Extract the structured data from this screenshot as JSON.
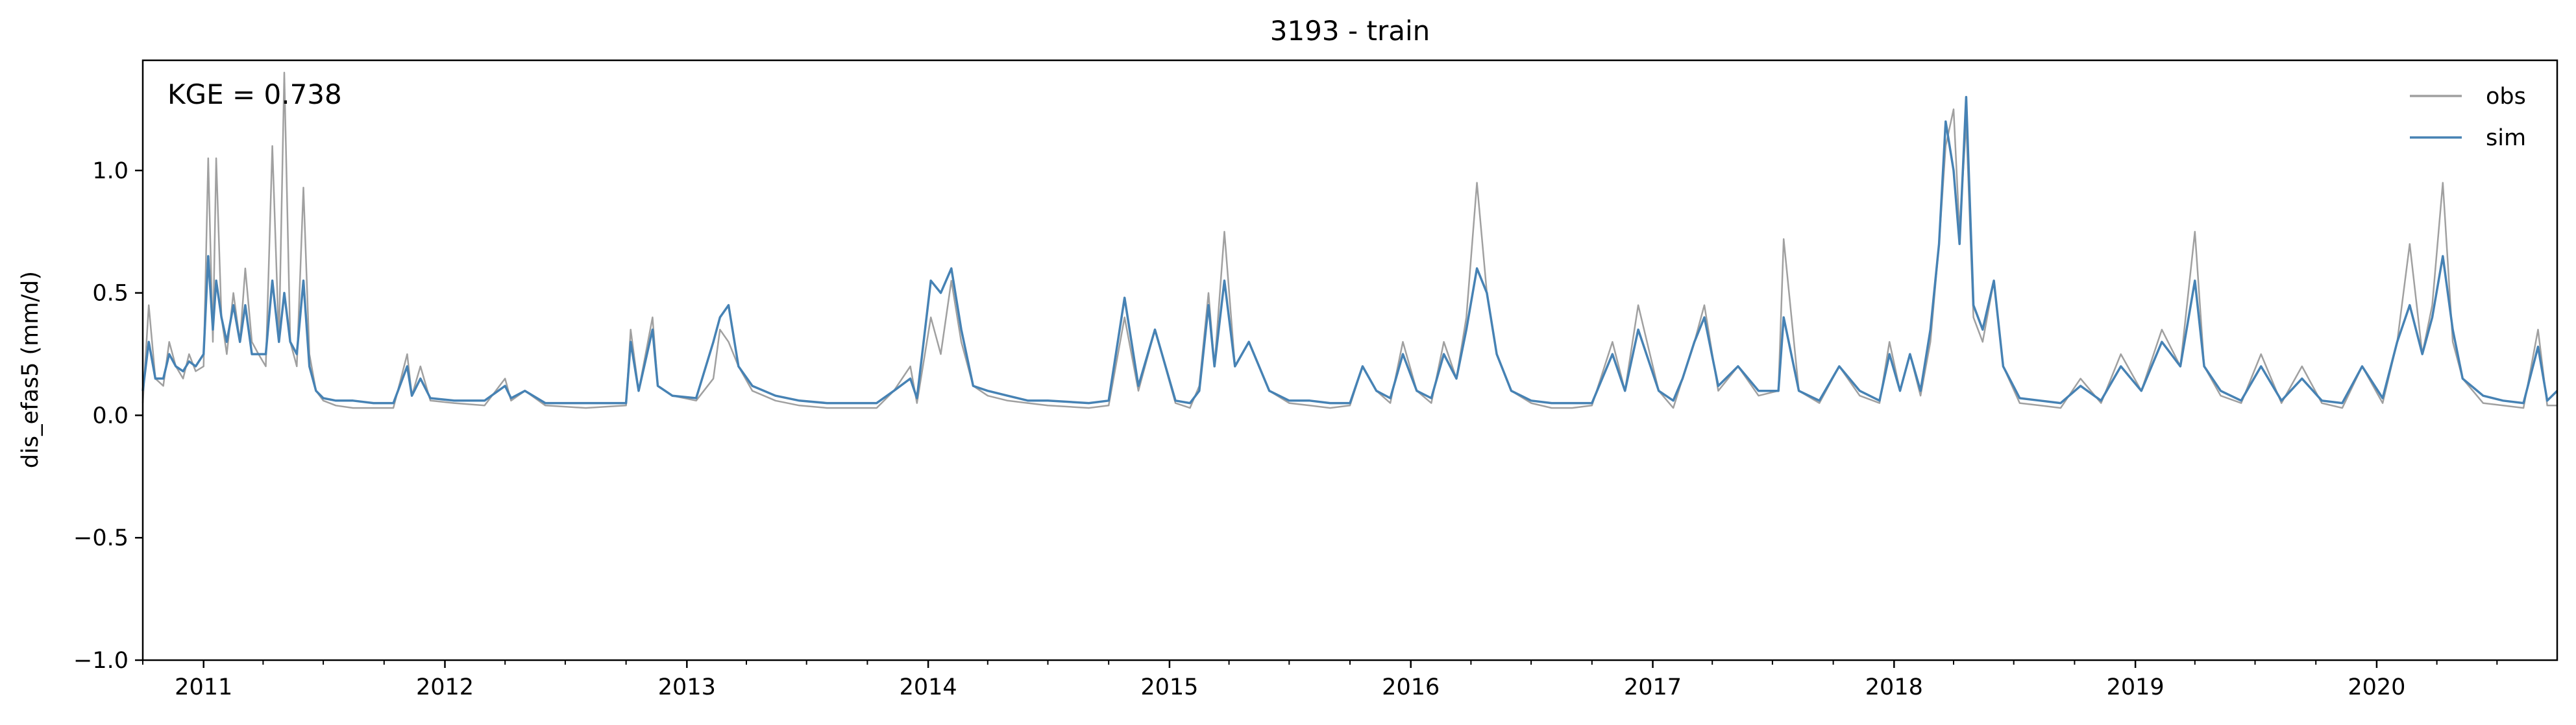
{
  "chart_data": {
    "type": "line",
    "title": "3193 - train",
    "xlabel": "",
    "ylabel": "dis_efas5 (mm/d)",
    "annotation": "KGE = 0.738",
    "x_type": "date",
    "xlim": [
      "2010-10-01",
      "2020-09-30"
    ],
    "ylim": [
      -1.0,
      1.45
    ],
    "yticks": [
      -1.0,
      -0.5,
      0.0,
      0.5,
      1.0
    ],
    "ytick_labels": [
      "−1.0",
      "−0.5",
      "0.0",
      "0.5",
      "1.0"
    ],
    "xticks": [
      "2011",
      "2012",
      "2013",
      "2014",
      "2015",
      "2016",
      "2017",
      "2018",
      "2019",
      "2020"
    ],
    "grid": false,
    "legend_position": "top-right",
    "colors": {
      "obs": "#a0a0a0",
      "sim": "#4682b4"
    },
    "series": [
      {
        "name": "obs",
        "color": "#a0a0a0",
        "x": [
          "2010-10-01",
          "2010-10-10",
          "2010-10-20",
          "2010-11-01",
          "2010-11-10",
          "2010-11-20",
          "2010-12-01",
          "2010-12-10",
          "2010-12-20",
          "2011-01-01",
          "2011-01-08",
          "2011-01-15",
          "2011-01-20",
          "2011-01-28",
          "2011-02-05",
          "2011-02-15",
          "2011-02-25",
          "2011-03-05",
          "2011-03-15",
          "2011-03-25",
          "2011-04-05",
          "2011-04-15",
          "2011-04-25",
          "2011-05-03",
          "2011-05-12",
          "2011-05-22",
          "2011-06-01",
          "2011-06-10",
          "2011-06-20",
          "2011-07-01",
          "2011-07-20",
          "2011-08-15",
          "2011-09-15",
          "2011-10-15",
          "2011-11-05",
          "2011-11-12",
          "2011-11-25",
          "2011-12-10",
          "2012-01-15",
          "2012-03-01",
          "2012-04-01",
          "2012-04-10",
          "2012-05-01",
          "2012-06-01",
          "2012-08-01",
          "2012-10-01",
          "2012-10-08",
          "2012-10-20",
          "2012-11-10",
          "2012-11-18",
          "2012-12-10",
          "2013-01-15",
          "2013-02-10",
          "2013-02-20",
          "2013-03-05",
          "2013-03-20",
          "2013-04-10",
          "2013-05-15",
          "2013-06-20",
          "2013-08-01",
          "2013-09-15",
          "2013-10-15",
          "2013-11-10",
          "2013-12-05",
          "2013-12-15",
          "2014-01-05",
          "2014-01-20",
          "2014-02-05",
          "2014-02-20",
          "2014-03-10",
          "2014-04-01",
          "2014-05-01",
          "2014-06-01",
          "2014-07-01",
          "2014-09-01",
          "2014-10-01",
          "2014-10-25",
          "2014-11-15",
          "2014-12-10",
          "2015-01-10",
          "2015-02-01",
          "2015-02-15",
          "2015-03-01",
          "2015-03-10",
          "2015-03-25",
          "2015-04-10",
          "2015-05-01",
          "2015-06-01",
          "2015-07-01",
          "2015-08-01",
          "2015-09-01",
          "2015-10-01",
          "2015-10-20",
          "2015-11-10",
          "2015-12-01",
          "2015-12-20",
          "2016-01-10",
          "2016-02-01",
          "2016-02-20",
          "2016-03-10",
          "2016-03-25",
          "2016-04-10",
          "2016-04-25",
          "2016-05-10",
          "2016-06-01",
          "2016-07-01",
          "2016-08-01",
          "2016-09-01",
          "2016-10-01",
          "2016-11-01",
          "2016-11-20",
          "2016-12-10",
          "2017-01-10",
          "2017-02-01",
          "2017-02-15",
          "2017-03-05",
          "2017-03-20",
          "2017-04-10",
          "2017-05-10",
          "2017-06-10",
          "2017-07-10",
          "2017-07-18",
          "2017-08-10",
          "2017-09-10",
          "2017-10-10",
          "2017-11-10",
          "2017-12-10",
          "2017-12-25",
          "2018-01-10",
          "2018-01-25",
          "2018-02-10",
          "2018-02-25",
          "2018-03-10",
          "2018-03-20",
          "2018-04-01",
          "2018-04-10",
          "2018-04-20",
          "2018-05-01",
          "2018-05-15",
          "2018-06-01",
          "2018-06-15",
          "2018-07-10",
          "2018-08-10",
          "2018-09-10",
          "2018-10-10",
          "2018-11-10",
          "2018-12-10",
          "2019-01-10",
          "2019-02-10",
          "2019-03-10",
          "2019-04-01",
          "2019-04-15",
          "2019-05-10",
          "2019-06-10",
          "2019-07-10",
          "2019-08-10",
          "2019-09-10",
          "2019-10-10",
          "2019-11-10",
          "2019-12-10",
          "2020-01-10",
          "2020-02-01",
          "2020-02-20",
          "2020-03-10",
          "2020-03-25",
          "2020-04-10",
          "2020-04-25",
          "2020-05-10",
          "2020-06-10",
          "2020-07-10",
          "2020-08-10",
          "2020-09-01",
          "2020-09-15",
          "2020-09-30"
        ],
        "y": [
          0.05,
          0.45,
          0.15,
          0.12,
          0.3,
          0.2,
          0.15,
          0.25,
          0.18,
          0.2,
          1.05,
          0.3,
          1.05,
          0.4,
          0.25,
          0.5,
          0.3,
          0.6,
          0.3,
          0.25,
          0.2,
          1.1,
          0.3,
          1.4,
          0.3,
          0.2,
          0.93,
          0.25,
          0.1,
          0.06,
          0.04,
          0.03,
          0.03,
          0.03,
          0.25,
          0.08,
          0.2,
          0.06,
          0.05,
          0.04,
          0.15,
          0.06,
          0.1,
          0.04,
          0.03,
          0.04,
          0.35,
          0.1,
          0.4,
          0.12,
          0.08,
          0.06,
          0.15,
          0.35,
          0.3,
          0.2,
          0.1,
          0.06,
          0.04,
          0.03,
          0.03,
          0.03,
          0.1,
          0.2,
          0.05,
          0.4,
          0.25,
          0.55,
          0.3,
          0.12,
          0.08,
          0.06,
          0.05,
          0.04,
          0.03,
          0.04,
          0.4,
          0.1,
          0.35,
          0.05,
          0.03,
          0.12,
          0.5,
          0.2,
          0.75,
          0.2,
          0.3,
          0.1,
          0.05,
          0.04,
          0.03,
          0.04,
          0.2,
          0.1,
          0.05,
          0.3,
          0.1,
          0.05,
          0.3,
          0.15,
          0.4,
          0.95,
          0.5,
          0.25,
          0.1,
          0.05,
          0.03,
          0.03,
          0.04,
          0.3,
          0.1,
          0.45,
          0.1,
          0.03,
          0.15,
          0.3,
          0.45,
          0.1,
          0.2,
          0.08,
          0.1,
          0.72,
          0.1,
          0.05,
          0.2,
          0.08,
          0.05,
          0.3,
          0.1,
          0.25,
          0.08,
          0.3,
          0.7,
          1.1,
          1.25,
          0.75,
          1.2,
          0.4,
          0.3,
          0.55,
          0.2,
          0.05,
          0.04,
          0.03,
          0.15,
          0.05,
          0.25,
          0.1,
          0.35,
          0.2,
          0.75,
          0.2,
          0.08,
          0.05,
          0.25,
          0.05,
          0.2,
          0.05,
          0.03,
          0.2,
          0.05,
          0.3,
          0.7,
          0.25,
          0.45,
          0.95,
          0.3,
          0.15,
          0.05,
          0.04,
          0.03,
          0.35,
          0.04,
          0.04
        ]
      },
      {
        "name": "sim",
        "color": "#4682b4",
        "x": [
          "2010-10-01",
          "2010-10-10",
          "2010-10-20",
          "2010-11-01",
          "2010-11-10",
          "2010-11-20",
          "2010-12-01",
          "2010-12-10",
          "2010-12-20",
          "2011-01-01",
          "2011-01-08",
          "2011-01-15",
          "2011-01-20",
          "2011-01-28",
          "2011-02-05",
          "2011-02-15",
          "2011-02-25",
          "2011-03-05",
          "2011-03-15",
          "2011-03-25",
          "2011-04-05",
          "2011-04-15",
          "2011-04-25",
          "2011-05-03",
          "2011-05-12",
          "2011-05-22",
          "2011-06-01",
          "2011-06-10",
          "2011-06-20",
          "2011-07-01",
          "2011-07-20",
          "2011-08-15",
          "2011-09-15",
          "2011-10-15",
          "2011-11-05",
          "2011-11-12",
          "2011-11-25",
          "2011-12-10",
          "2012-01-15",
          "2012-03-01",
          "2012-04-01",
          "2012-04-10",
          "2012-05-01",
          "2012-06-01",
          "2012-08-01",
          "2012-10-01",
          "2012-10-08",
          "2012-10-20",
          "2012-11-10",
          "2012-11-18",
          "2012-12-10",
          "2013-01-15",
          "2013-02-10",
          "2013-02-20",
          "2013-03-05",
          "2013-03-20",
          "2013-04-10",
          "2013-05-15",
          "2013-06-20",
          "2013-08-01",
          "2013-09-15",
          "2013-10-15",
          "2013-11-10",
          "2013-12-05",
          "2013-12-15",
          "2014-01-05",
          "2014-01-20",
          "2014-02-05",
          "2014-02-20",
          "2014-03-10",
          "2014-04-01",
          "2014-05-01",
          "2014-06-01",
          "2014-07-01",
          "2014-09-01",
          "2014-10-01",
          "2014-10-25",
          "2014-11-15",
          "2014-12-10",
          "2015-01-10",
          "2015-02-01",
          "2015-02-15",
          "2015-03-01",
          "2015-03-10",
          "2015-03-25",
          "2015-04-10",
          "2015-05-01",
          "2015-06-01",
          "2015-07-01",
          "2015-08-01",
          "2015-09-01",
          "2015-10-01",
          "2015-10-20",
          "2015-11-10",
          "2015-12-01",
          "2015-12-20",
          "2016-01-10",
          "2016-02-01",
          "2016-02-20",
          "2016-03-10",
          "2016-03-25",
          "2016-04-10",
          "2016-04-25",
          "2016-05-10",
          "2016-06-01",
          "2016-07-01",
          "2016-08-01",
          "2016-09-01",
          "2016-10-01",
          "2016-11-01",
          "2016-11-20",
          "2016-12-10",
          "2017-01-10",
          "2017-02-01",
          "2017-02-15",
          "2017-03-05",
          "2017-03-20",
          "2017-04-10",
          "2017-05-10",
          "2017-06-10",
          "2017-07-10",
          "2017-07-18",
          "2017-08-10",
          "2017-09-10",
          "2017-10-10",
          "2017-11-10",
          "2017-12-10",
          "2017-12-25",
          "2018-01-10",
          "2018-01-25",
          "2018-02-10",
          "2018-02-25",
          "2018-03-10",
          "2018-03-20",
          "2018-04-01",
          "2018-04-10",
          "2018-04-20",
          "2018-05-01",
          "2018-05-15",
          "2018-06-01",
          "2018-06-15",
          "2018-07-10",
          "2018-08-10",
          "2018-09-10",
          "2018-10-10",
          "2018-11-10",
          "2018-12-10",
          "2019-01-10",
          "2019-02-10",
          "2019-03-10",
          "2019-04-01",
          "2019-04-15",
          "2019-05-10",
          "2019-06-10",
          "2019-07-10",
          "2019-08-10",
          "2019-09-10",
          "2019-10-10",
          "2019-11-10",
          "2019-12-10",
          "2020-01-10",
          "2020-02-01",
          "2020-02-20",
          "2020-03-10",
          "2020-03-25",
          "2020-04-10",
          "2020-04-25",
          "2020-05-10",
          "2020-06-10",
          "2020-07-10",
          "2020-08-10",
          "2020-09-01",
          "2020-09-15",
          "2020-09-30"
        ],
        "y": [
          0.1,
          0.3,
          0.15,
          0.15,
          0.25,
          0.2,
          0.18,
          0.22,
          0.2,
          0.25,
          0.65,
          0.35,
          0.55,
          0.4,
          0.3,
          0.45,
          0.3,
          0.45,
          0.25,
          0.25,
          0.25,
          0.55,
          0.3,
          0.5,
          0.3,
          0.25,
          0.55,
          0.2,
          0.1,
          0.07,
          0.06,
          0.06,
          0.05,
          0.05,
          0.2,
          0.08,
          0.15,
          0.07,
          0.06,
          0.06,
          0.12,
          0.07,
          0.1,
          0.05,
          0.05,
          0.05,
          0.3,
          0.1,
          0.35,
          0.12,
          0.08,
          0.07,
          0.3,
          0.4,
          0.45,
          0.2,
          0.12,
          0.08,
          0.06,
          0.05,
          0.05,
          0.05,
          0.1,
          0.15,
          0.07,
          0.55,
          0.5,
          0.6,
          0.35,
          0.12,
          0.1,
          0.08,
          0.06,
          0.06,
          0.05,
          0.06,
          0.48,
          0.12,
          0.35,
          0.06,
          0.05,
          0.1,
          0.45,
          0.2,
          0.55,
          0.2,
          0.3,
          0.1,
          0.06,
          0.06,
          0.05,
          0.05,
          0.2,
          0.1,
          0.07,
          0.25,
          0.1,
          0.07,
          0.25,
          0.15,
          0.35,
          0.6,
          0.5,
          0.25,
          0.1,
          0.06,
          0.05,
          0.05,
          0.05,
          0.25,
          0.1,
          0.35,
          0.1,
          0.06,
          0.15,
          0.3,
          0.4,
          0.12,
          0.2,
          0.1,
          0.1,
          0.4,
          0.1,
          0.06,
          0.2,
          0.1,
          0.06,
          0.25,
          0.1,
          0.25,
          0.1,
          0.35,
          0.7,
          1.2,
          1.0,
          0.7,
          1.3,
          0.45,
          0.35,
          0.55,
          0.2,
          0.07,
          0.06,
          0.05,
          0.12,
          0.06,
          0.2,
          0.1,
          0.3,
          0.2,
          0.55,
          0.2,
          0.1,
          0.06,
          0.2,
          0.06,
          0.15,
          0.06,
          0.05,
          0.2,
          0.07,
          0.3,
          0.45,
          0.25,
          0.4,
          0.65,
          0.35,
          0.15,
          0.08,
          0.06,
          0.05,
          0.28,
          0.06,
          0.1
        ]
      }
    ]
  }
}
